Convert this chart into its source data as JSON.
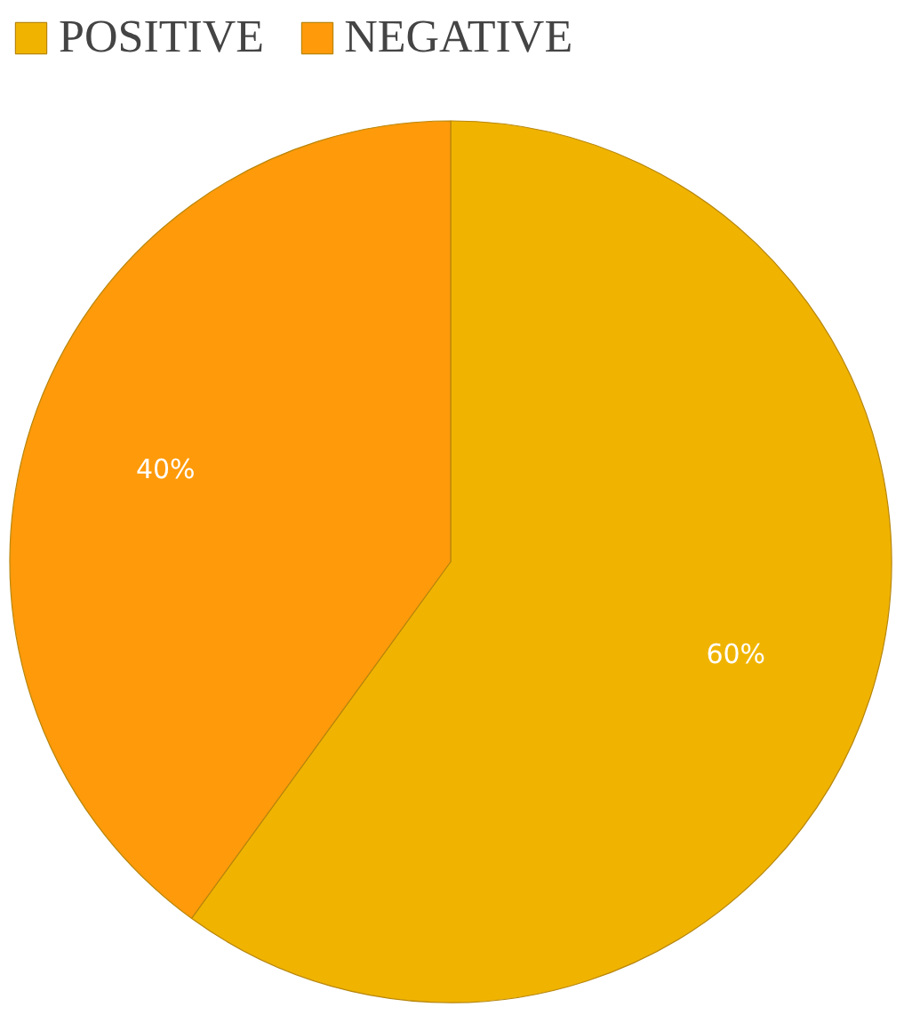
{
  "chart_data": {
    "type": "pie",
    "categories": [
      "POSITIVE",
      "NEGATIVE"
    ],
    "values": [
      60,
      40
    ],
    "colors": [
      "#f0b400",
      "#ff9a0a"
    ],
    "value_labels": [
      "60%",
      "40%"
    ],
    "legend": "top left"
  }
}
